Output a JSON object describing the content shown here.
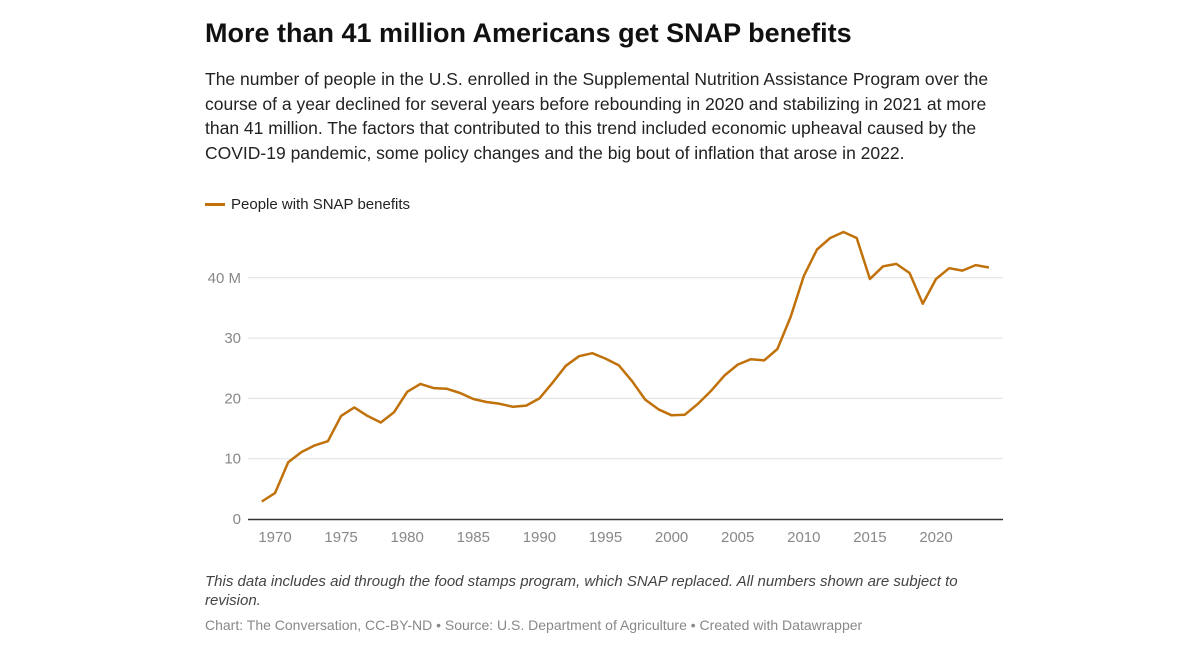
{
  "title": "More than 41 million Americans get SNAP benefits",
  "description": "The number of people in the U.S. enrolled in the Supplemental Nutrition Assistance Program over the course of a year declined for several years before rebounding in 2020 and stabilizing in 2021 at more than 41 million. The factors that contributed to this trend included economic upheaval caused by the COVID-19 pandemic, some policy changes and the big bout of inflation that arose in 2022.",
  "note": "This data includes aid through the food stamps program, which SNAP replaced. All numbers shown are subject to revision.",
  "credit": "Chart: The Conversation, CC-BY-ND • Source: U.S. Department of Agriculture • Created with Datawrapper",
  "chart_data": {
    "type": "line",
    "title": "More than 41 million Americans get SNAP benefits",
    "xlabel": "",
    "ylabel": "",
    "ylim": [
      0,
      50
    ],
    "xlim": [
      1969,
      2024
    ],
    "grid": true,
    "legend": "top-left",
    "color": "#c07109",
    "y_ticks": [
      0,
      10,
      20,
      30,
      40
    ],
    "y_tick_labels": [
      "0",
      "10",
      "20",
      "30",
      "40 M"
    ],
    "x_ticks": [
      1970,
      1975,
      1980,
      1985,
      1990,
      1995,
      2000,
      2005,
      2010,
      2015,
      2020
    ],
    "x_tick_labels": [
      "1970",
      "1975",
      "1980",
      "1985",
      "1990",
      "1995",
      "2000",
      "2005",
      "2010",
      "2015",
      "2020"
    ],
    "series": [
      {
        "name": "People with SNAP benefits",
        "x": [
          1969,
          1970,
          1971,
          1972,
          1973,
          1974,
          1975,
          1976,
          1977,
          1978,
          1979,
          1980,
          1981,
          1982,
          1983,
          1984,
          1985,
          1986,
          1987,
          1988,
          1989,
          1990,
          1991,
          1992,
          1993,
          1994,
          1995,
          1996,
          1997,
          1998,
          1999,
          2000,
          2001,
          2002,
          2003,
          2004,
          2005,
          2006,
          2007,
          2008,
          2009,
          2010,
          2011,
          2012,
          2013,
          2014,
          2015,
          2016,
          2017,
          2018,
          2019,
          2020,
          2021,
          2022,
          2023,
          2024
        ],
        "values": [
          2.9,
          4.3,
          9.4,
          11.1,
          12.2,
          12.9,
          17.1,
          18.5,
          17.1,
          16.0,
          17.7,
          21.1,
          22.4,
          21.7,
          21.6,
          20.9,
          19.9,
          19.4,
          19.1,
          18.6,
          18.8,
          20.0,
          22.6,
          25.4,
          27.0,
          27.5,
          26.6,
          25.5,
          22.9,
          19.8,
          18.2,
          17.2,
          17.3,
          19.1,
          21.3,
          23.8,
          25.6,
          26.5,
          26.3,
          28.2,
          33.5,
          40.3,
          44.7,
          46.6,
          47.6,
          46.6,
          39.8,
          41.9,
          42.3,
          40.8,
          35.7,
          39.8,
          41.6,
          41.2,
          42.1,
          41.7
        ]
      }
    ]
  }
}
